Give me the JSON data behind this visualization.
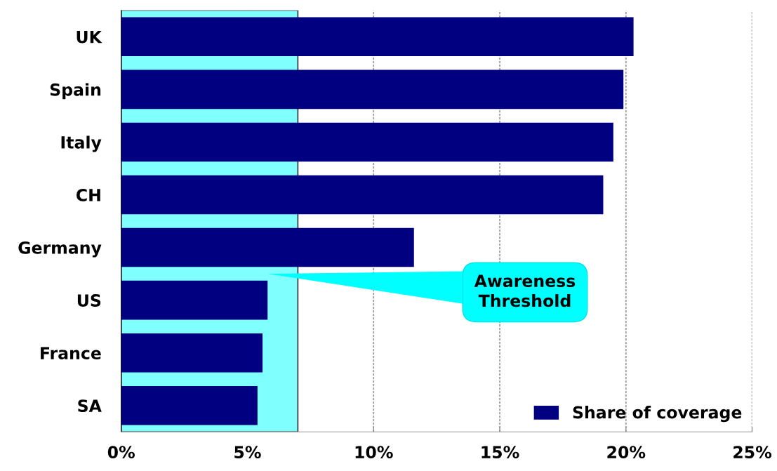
{
  "chart_data": {
    "type": "bar",
    "orientation": "horizontal",
    "categories": [
      "UK",
      "Spain",
      "Italy",
      "CH",
      "Germany",
      "US",
      "France",
      "SA"
    ],
    "series": [
      {
        "name": "Share of coverage",
        "color": "#000080",
        "values": [
          20.3,
          19.9,
          19.5,
          19.1,
          11.6,
          5.8,
          5.6,
          5.4
        ]
      }
    ],
    "xlim": [
      0,
      25
    ],
    "xticks": [
      {
        "value": 0,
        "label": "0%"
      },
      {
        "value": 5,
        "label": "5%"
      },
      {
        "value": 10,
        "label": "10%"
      },
      {
        "value": 15,
        "label": "15%"
      },
      {
        "value": 20,
        "label": "20%"
      },
      {
        "value": 25,
        "label": "25%"
      }
    ],
    "bands": [
      {
        "axis": "x",
        "from": 0,
        "to": 7,
        "label": "Awareness Threshold",
        "color": "#80ffff"
      }
    ],
    "grid": "x",
    "legend": "bottom right"
  }
}
